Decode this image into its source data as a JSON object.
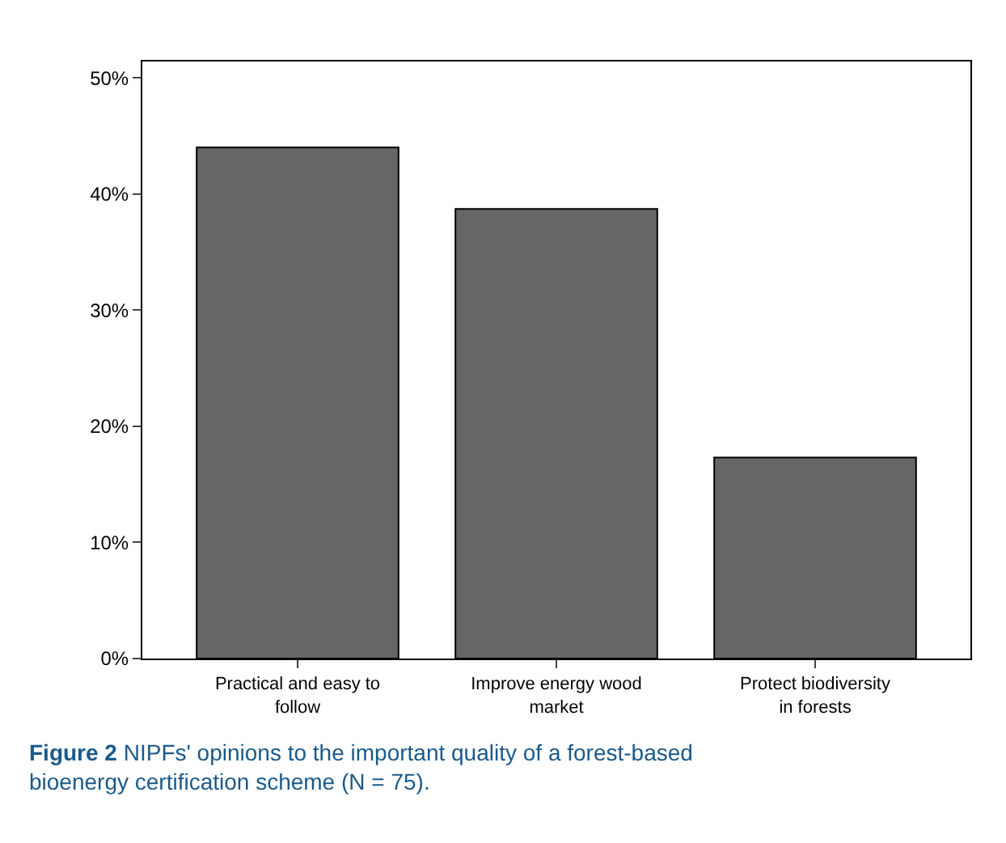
{
  "chart_data": {
    "type": "bar",
    "categories": [
      "Practical and easy to follow",
      "Improve energy wood market",
      "Protect biodiversity in forests"
    ],
    "values": [
      44,
      38.7,
      17.3
    ],
    "color": "#666666",
    "ylim": [
      0,
      51.4
    ],
    "yticks": [
      {
        "value": 0,
        "label": "0%"
      },
      {
        "value": 10,
        "label": "10%"
      },
      {
        "value": 20,
        "label": "20%"
      },
      {
        "value": 30,
        "label": "30%"
      },
      {
        "value": 40,
        "label": "40%"
      },
      {
        "value": 50,
        "label": "50%"
      }
    ],
    "annotations": [
      "Figure 2",
      "NIPFs' opinions to the important quality of a forest-based bioenergy certification scheme (N = 75)."
    ]
  }
}
